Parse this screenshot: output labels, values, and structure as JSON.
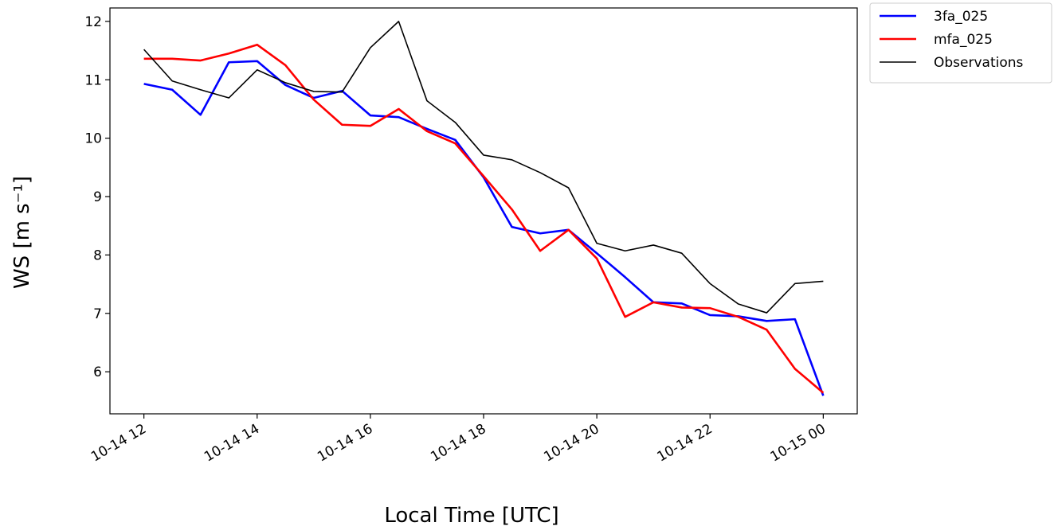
{
  "chart_data": {
    "type": "line",
    "x_label": "Local Time [UTC]",
    "y_label": "WS [m s⁻¹]",
    "x": [
      "10-14 12:00",
      "10-14 12:30",
      "10-14 13:00",
      "10-14 13:30",
      "10-14 14:00",
      "10-14 14:30",
      "10-14 15:00",
      "10-14 15:30",
      "10-14 16:00",
      "10-14 16:30",
      "10-14 17:00",
      "10-14 17:30",
      "10-14 18:00",
      "10-14 18:30",
      "10-14 19:00",
      "10-14 19:30",
      "10-14 20:00",
      "10-14 20:30",
      "10-14 21:00",
      "10-14 21:30",
      "10-14 22:00",
      "10-14 22:30",
      "10-14 23:00",
      "10-14 23:30",
      "10-15 00:00"
    ],
    "series": [
      {
        "name": "3fa_025",
        "color": "#0000ff",
        "values": [
          10.93,
          10.83,
          10.4,
          11.3,
          11.32,
          10.91,
          10.69,
          10.81,
          10.39,
          10.36,
          10.16,
          9.97,
          9.33,
          8.48,
          8.37,
          8.43,
          8.03,
          7.62,
          7.19,
          7.17,
          6.97,
          6.95,
          6.87,
          6.9,
          5.59
        ]
      },
      {
        "name": "mfa_025",
        "color": "#ff0000",
        "values": [
          11.36,
          11.36,
          11.33,
          11.45,
          11.6,
          11.25,
          10.66,
          10.23,
          10.21,
          10.5,
          10.12,
          9.91,
          9.35,
          8.78,
          8.07,
          8.43,
          7.94,
          6.94,
          7.19,
          7.1,
          7.09,
          6.94,
          6.72,
          6.05,
          5.64
        ]
      },
      {
        "name": "Observations",
        "color": "#000000",
        "values": [
          11.52,
          10.98,
          10.83,
          10.69,
          11.17,
          10.95,
          10.8,
          10.79,
          11.55,
          12.0,
          10.64,
          10.27,
          9.71,
          9.63,
          9.41,
          9.15,
          8.2,
          8.07,
          8.17,
          8.03,
          7.51,
          7.16,
          7.01,
          7.51,
          7.55
        ]
      }
    ],
    "xlim": [
      "10-14 11:24",
      "10-15 00:36"
    ],
    "xticks": [
      {
        "value": "10-14 12:00",
        "label": "10-14 12"
      },
      {
        "value": "10-14 14:00",
        "label": "10-14 14"
      },
      {
        "value": "10-14 16:00",
        "label": "10-14 16"
      },
      {
        "value": "10-14 18:00",
        "label": "10-14 18"
      },
      {
        "value": "10-14 20:00",
        "label": "10-14 20"
      },
      {
        "value": "10-14 22:00",
        "label": "10-14 22"
      },
      {
        "value": "10-15 00:00",
        "label": "10-15 00"
      }
    ],
    "ylim": [
      5.28,
      12.23
    ],
    "yticks": [
      6,
      7,
      8,
      9,
      10,
      11,
      12
    ],
    "grid": false,
    "legend": "outside upper right"
  }
}
